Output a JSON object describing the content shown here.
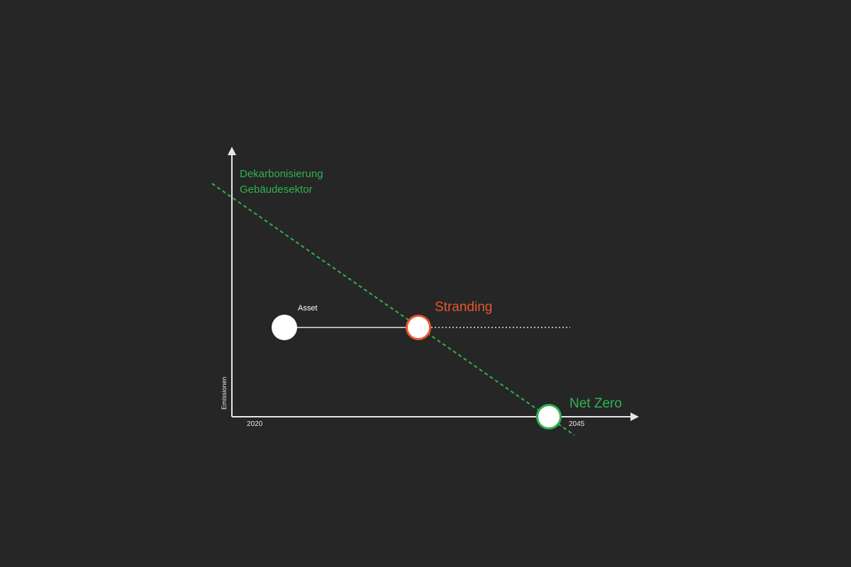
{
  "diagram": {
    "y_axis_label": "Emissionen",
    "x_tick_start": "2020",
    "x_tick_end": "2045",
    "trend_label_line1": "Dekarbonisierung",
    "trend_label_line2": "Gebäudesektor",
    "asset_label": "Asset",
    "stranding_label": "Stranding",
    "net_zero_label": "Net Zero"
  },
  "colors": {
    "background": "#262626",
    "axis": "#e6e6e6",
    "trend": "#2fb34f",
    "stranding": "#e8562b",
    "net_zero": "#2fb34f",
    "marker_fill": "#ffffff"
  }
}
